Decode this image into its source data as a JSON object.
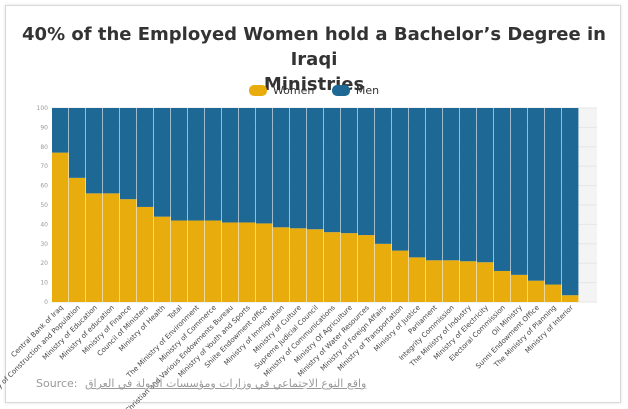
{
  "chart_data": {
    "type": "bar",
    "stacked": true,
    "title_lines": [
      "40% of the Employed Women hold a Bachelor’s Degree in Iraqi",
      "Ministries"
    ],
    "ylim": [
      0,
      100
    ],
    "yticks": [
      0,
      10,
      20,
      30,
      40,
      50,
      60,
      70,
      80,
      90,
      100
    ],
    "legend_position": "top-center",
    "categories": [
      "Central Bank of Iraq",
      "Ministry of Construction and Population",
      "Ministry of Education",
      "Ministry of education",
      "Ministry of Finance",
      "Council of Ministers",
      "Ministry of Health",
      "Total",
      "The Ministry of Environment",
      "Ministry of Commerce",
      "Christian and Various Endowments Bureau",
      "Ministry of Youth and Sports",
      "Shiite Endowment office",
      "Ministry of Immigration",
      "Ministry of Culture",
      "Supreme Judicial Council",
      "Ministry of Communications",
      "Ministry Of Agriculture",
      "Ministry of Water Resources",
      "Ministry of Foreign Affairs",
      "Ministry of Transportation",
      "Ministry of Justice",
      "Parliament",
      "Integrity Commission",
      "The Ministry of Industry",
      "Ministry of Electricity",
      "Electoral Commission",
      "Oil Ministry",
      "Sunni Endowment Office",
      "The Ministry of Planning",
      "Ministry of Interior"
    ],
    "series": [
      {
        "name": "Women",
        "color": "#e8ad0d",
        "values": [
          77,
          64,
          56,
          56,
          53,
          49,
          44,
          42,
          42,
          42,
          41,
          41,
          40.5,
          38.5,
          38,
          37.5,
          36,
          35.5,
          34.5,
          30,
          26.5,
          23,
          21.5,
          21.5,
          21,
          20.5,
          16,
          14,
          11,
          9,
          3.5
        ]
      },
      {
        "name": "Men",
        "color": "#1d6895",
        "values": [
          23,
          36,
          44,
          44,
          47,
          51,
          56,
          58,
          58,
          58,
          59,
          59,
          59.5,
          61.5,
          62,
          62.5,
          64,
          64.5,
          65.5,
          70,
          73.5,
          77,
          78.5,
          78.5,
          79,
          79.5,
          84,
          86,
          89,
          91,
          96.5
        ]
      }
    ]
  },
  "source": {
    "label": "Source:",
    "link_text": "واقع النوع الاجتماعي في وزارات ومؤسسات الدولة في العراق"
  }
}
